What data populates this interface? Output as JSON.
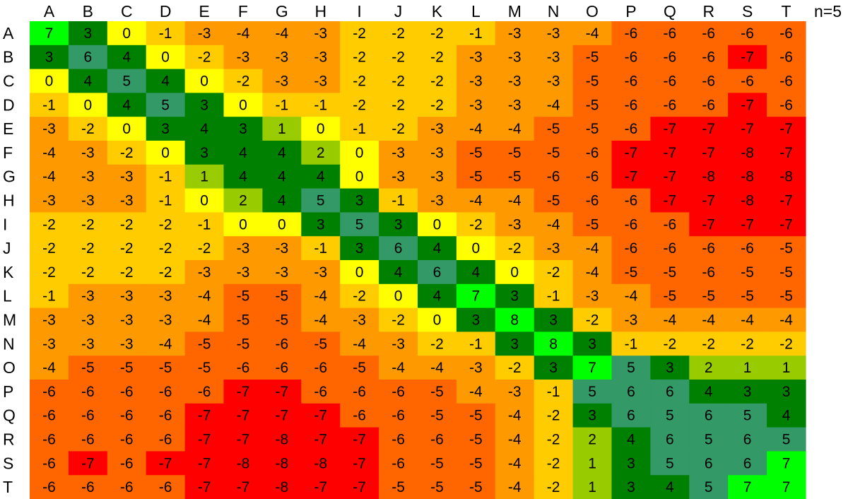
{
  "chart_data": {
    "type": "heatmap",
    "title": "",
    "x_labels": [
      "A",
      "B",
      "C",
      "D",
      "E",
      "F",
      "G",
      "H",
      "I",
      "J",
      "K",
      "L",
      "M",
      "N",
      "O",
      "P",
      "Q",
      "R",
      "S",
      "T"
    ],
    "y_labels": [
      "A",
      "B",
      "C",
      "D",
      "E",
      "F",
      "G",
      "H",
      "I",
      "J",
      "K",
      "L",
      "M",
      "N",
      "O",
      "P",
      "Q",
      "R",
      "S",
      "T"
    ],
    "annotation": "n=5",
    "values": [
      [
        7,
        3,
        0,
        -1,
        -3,
        -4,
        -4,
        -3,
        -2,
        -2,
        -2,
        -1,
        -3,
        -3,
        -4,
        -6,
        -6,
        -6,
        -6,
        -6
      ],
      [
        3,
        6,
        4,
        0,
        -2,
        -3,
        -3,
        -3,
        -2,
        -2,
        -2,
        -3,
        -3,
        -3,
        -5,
        -6,
        -6,
        -6,
        -7,
        -6
      ],
      [
        0,
        4,
        5,
        4,
        0,
        -2,
        -3,
        -3,
        -2,
        -2,
        -2,
        -3,
        -3,
        -3,
        -5,
        -6,
        -6,
        -6,
        -6,
        -6
      ],
      [
        -1,
        0,
        4,
        5,
        3,
        0,
        -1,
        -1,
        -2,
        -2,
        -2,
        -3,
        -3,
        -4,
        -5,
        -6,
        -6,
        -6,
        -7,
        -6
      ],
      [
        -3,
        -2,
        0,
        3,
        4,
        3,
        1,
        0,
        -1,
        -2,
        -3,
        -4,
        -4,
        -5,
        -5,
        -6,
        -7,
        -7,
        -7,
        -7
      ],
      [
        -4,
        -3,
        -2,
        0,
        3,
        4,
        4,
        2,
        0,
        -3,
        -3,
        -5,
        -5,
        -5,
        -6,
        -7,
        -7,
        -7,
        -8,
        -7
      ],
      [
        -4,
        -3,
        -3,
        -1,
        1,
        4,
        4,
        4,
        0,
        -3,
        -3,
        -5,
        -5,
        -6,
        -6,
        -7,
        -7,
        -8,
        -8,
        -8
      ],
      [
        -3,
        -3,
        -3,
        -1,
        0,
        2,
        4,
        5,
        3,
        -1,
        -3,
        -4,
        -4,
        -5,
        -6,
        -6,
        -7,
        -7,
        -8,
        -7
      ],
      [
        -2,
        -2,
        -2,
        -2,
        -1,
        0,
        0,
        3,
        5,
        3,
        0,
        -2,
        -3,
        -4,
        -5,
        -6,
        -6,
        -7,
        -7,
        -7
      ],
      [
        -2,
        -2,
        -2,
        -2,
        -2,
        -3,
        -3,
        -1,
        3,
        6,
        4,
        0,
        -2,
        -3,
        -4,
        -6,
        -6,
        -6,
        -6,
        -5
      ],
      [
        -2,
        -2,
        -2,
        -2,
        -3,
        -3,
        -3,
        -3,
        0,
        4,
        6,
        4,
        0,
        -2,
        -4,
        -5,
        -5,
        -6,
        -5,
        -5
      ],
      [
        -1,
        -3,
        -3,
        -3,
        -4,
        -5,
        -5,
        -4,
        -2,
        0,
        4,
        7,
        3,
        -1,
        -3,
        -4,
        -5,
        -5,
        -5,
        -5
      ],
      [
        -3,
        -3,
        -3,
        -3,
        -4,
        -5,
        -5,
        -4,
        -3,
        -2,
        0,
        3,
        8,
        3,
        -2,
        -3,
        -4,
        -4,
        -4,
        -4
      ],
      [
        -3,
        -3,
        -3,
        -4,
        -5,
        -5,
        -6,
        -5,
        -4,
        -3,
        -2,
        -1,
        3,
        8,
        3,
        -1,
        -2,
        -2,
        -2,
        -2
      ],
      [
        -4,
        -5,
        -5,
        -5,
        -5,
        -6,
        -6,
        -6,
        -5,
        -4,
        -4,
        -3,
        -2,
        3,
        7,
        5,
        3,
        2,
        1,
        1
      ],
      [
        -6,
        -6,
        -6,
        -6,
        -6,
        -7,
        -7,
        -6,
        -6,
        -6,
        -5,
        -4,
        -3,
        -1,
        5,
        6,
        6,
        4,
        3,
        3
      ],
      [
        -6,
        -6,
        -6,
        -6,
        -7,
        -7,
        -7,
        -7,
        -6,
        -6,
        -5,
        -5,
        -4,
        -2,
        3,
        6,
        5,
        6,
        5,
        4
      ],
      [
        -6,
        -6,
        -6,
        -6,
        -7,
        -7,
        -8,
        -7,
        -7,
        -6,
        -6,
        -5,
        -4,
        -2,
        2,
        4,
        6,
        5,
        6,
        5
      ],
      [
        -6,
        -7,
        -6,
        -7,
        -7,
        -8,
        -8,
        -8,
        -7,
        -6,
        -5,
        -5,
        -4,
        -2,
        1,
        3,
        5,
        6,
        6,
        7
      ],
      [
        -6,
        -6,
        -6,
        -6,
        -7,
        -7,
        -8,
        -7,
        -7,
        -5,
        -5,
        -5,
        -4,
        -2,
        1,
        3,
        4,
        5,
        7,
        7
      ]
    ],
    "color_scale": [
      {
        "value": -8,
        "color": "#ff0000"
      },
      {
        "value": -7,
        "color": "#ff0000"
      },
      {
        "value": -6,
        "color": "#ff6600"
      },
      {
        "value": -5,
        "color": "#ff6600"
      },
      {
        "value": -4,
        "color": "#ff9900"
      },
      {
        "value": -3,
        "color": "#ff9900"
      },
      {
        "value": -2,
        "color": "#ffcc00"
      },
      {
        "value": -1,
        "color": "#ffcc00"
      },
      {
        "value": 0,
        "color": "#ffff00"
      },
      {
        "value": 1,
        "color": "#99cc00"
      },
      {
        "value": 2,
        "color": "#99cc00"
      },
      {
        "value": 3,
        "color": "#008000"
      },
      {
        "value": 4,
        "color": "#008000"
      },
      {
        "value": 5,
        "color": "#339966"
      },
      {
        "value": 6,
        "color": "#339966"
      },
      {
        "value": 7,
        "color": "#00ff00"
      },
      {
        "value": 8,
        "color": "#00ff00"
      }
    ],
    "grid": false,
    "legend": "none"
  }
}
